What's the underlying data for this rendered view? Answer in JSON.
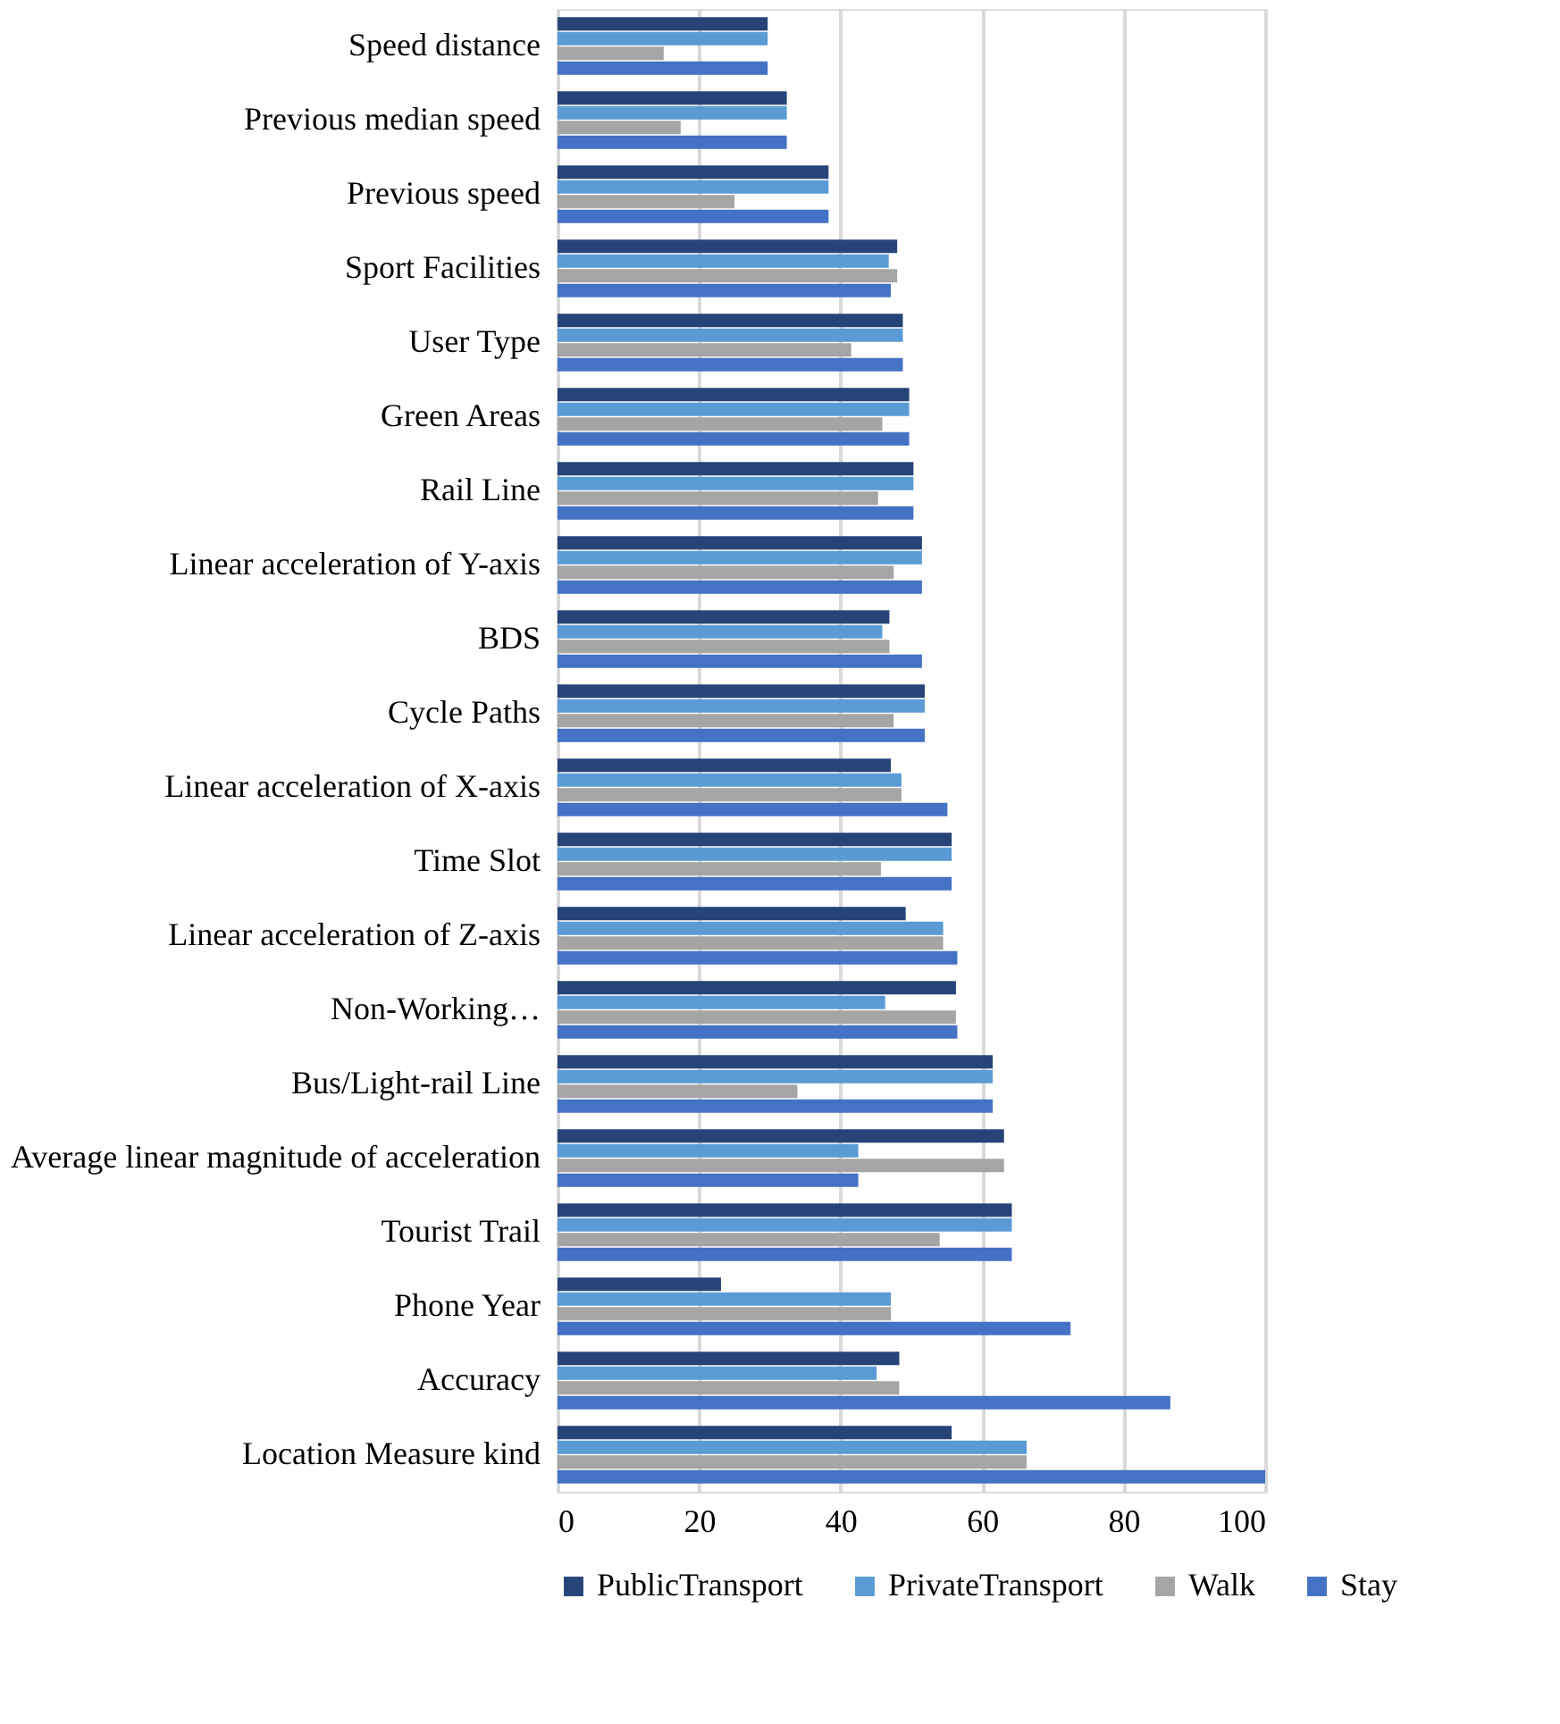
{
  "chart_data": {
    "type": "bar",
    "orientation": "horizontal",
    "categories": [
      "Speed distance",
      "Previous median speed",
      "Previous speed",
      "Sport Facilities",
      "User Type",
      "Green Areas",
      "Rail Line",
      "Linear acceleration of Y-axis",
      "BDS",
      "Cycle Paths",
      "Linear acceleration of X-axis",
      "Time Slot",
      "Linear acceleration of Z-axis",
      "Non-Working…",
      "Bus/Light-rail  Line",
      "Average linear magnitude of acceleration",
      "Tourist Trail",
      "Phone Year",
      "Accuracy",
      "Location Measure kind"
    ],
    "series": [
      {
        "name": "PublicTransport",
        "color": "#264478",
        "values": [
          29.7,
          32.4,
          38.3,
          48.0,
          48.8,
          49.7,
          50.3,
          51.5,
          46.9,
          51.9,
          47.1,
          55.7,
          49.2,
          56.3,
          61.5,
          63.1,
          64.2,
          23.1,
          48.3,
          55.7
        ]
      },
      {
        "name": "PrivateTransport",
        "color": "#5b9bd5",
        "values": [
          29.7,
          32.4,
          38.3,
          46.8,
          48.8,
          49.7,
          50.3,
          51.5,
          45.9,
          51.9,
          48.6,
          55.7,
          54.5,
          46.3,
          61.5,
          42.5,
          64.2,
          47.1,
          45.1,
          66.3
        ]
      },
      {
        "name": "Walk",
        "color": "#a5a5a5",
        "values": [
          15.0,
          17.4,
          25.0,
          48.0,
          41.5,
          45.9,
          45.3,
          47.5,
          46.9,
          47.5,
          48.6,
          45.7,
          54.5,
          56.3,
          33.9,
          63.1,
          54.0,
          47.1,
          48.3,
          66.3
        ]
      },
      {
        "name": "Stay",
        "color": "#4472c4",
        "values": [
          29.7,
          32.4,
          38.3,
          47.1,
          48.8,
          49.7,
          50.3,
          51.5,
          51.5,
          51.9,
          55.1,
          55.7,
          56.5,
          56.5,
          61.5,
          42.5,
          64.2,
          72.5,
          86.6,
          100
        ]
      }
    ],
    "xlim": [
      0,
      100
    ],
    "xticks": [
      0,
      20,
      40,
      60,
      80,
      100
    ],
    "grid": "x",
    "legend": "bottom"
  }
}
